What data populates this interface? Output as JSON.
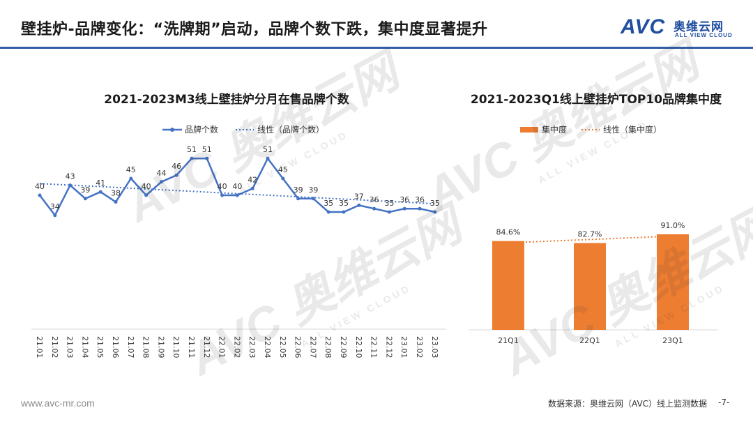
{
  "title": "壁挂炉-品牌变化：“洗牌期”启动，品牌个数下跌，集中度显著提升",
  "logo": {
    "mark": "AVC",
    "cn": "奥维云网",
    "en": "ALL VIEW CLOUD"
  },
  "watermark": {
    "main": "AVC 奥维云网",
    "sub": "ALL VIEW CLOUD"
  },
  "footer": {
    "url": "www.avc-mr.com",
    "source": "数据来源：奥维云网（AVC）线上监测数据",
    "page": "-7-"
  },
  "colors": {
    "line_series": "#4472c4",
    "bar_series": "#ed7d31",
    "brand": "#1f4fa0"
  },
  "chart_data": [
    {
      "type": "line",
      "title": "2021-2023M3线上壁挂炉分月在售品牌个数",
      "legend_position": "top",
      "trendline": true,
      "grid": false,
      "categories": [
        "21.01",
        "21.02",
        "21.03",
        "21.04",
        "21.05",
        "21.06",
        "21.07",
        "21.08",
        "21.09",
        "21.10",
        "21.11",
        "21.12",
        "22.01",
        "22.02",
        "22.03",
        "22.04",
        "22.05",
        "22.06",
        "22.07",
        "22.08",
        "22.09",
        "22.10",
        "22.11",
        "22.12",
        "23.01",
        "23.02",
        "23.03"
      ],
      "series": [
        {
          "name": "品牌个数",
          "values": [
            40,
            34,
            43,
            39,
            41,
            38,
            45,
            40,
            44,
            46,
            51,
            51,
            40,
            40,
            42,
            51,
            45,
            39,
            39,
            35,
            35,
            37,
            36,
            35,
            36,
            36,
            35
          ]
        }
      ],
      "trend_name": "线性（品牌个数）",
      "ylim": [
        0,
        60
      ]
    },
    {
      "type": "bar",
      "title": "2021-2023Q1线上壁挂炉TOP10品牌集中度",
      "legend_position": "top",
      "trendline": true,
      "grid": false,
      "categories": [
        "21Q1",
        "22Q1",
        "23Q1"
      ],
      "series": [
        {
          "name": "集中度",
          "values": [
            84.6,
            82.7,
            91.0
          ]
        }
      ],
      "labels": [
        "84.6%",
        "82.7%",
        "91.0%"
      ],
      "trend_name": "线性（集中度）",
      "ylim": [
        0,
        100
      ]
    }
  ]
}
